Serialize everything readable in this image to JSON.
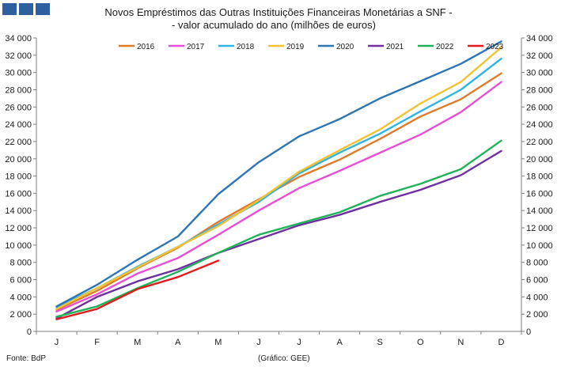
{
  "logo": {
    "squares": 3,
    "color": "#2e5f9e"
  },
  "footer": {
    "source": "Fonte: BdP",
    "credit": "(Gráfico: GEE)"
  },
  "chart_data": {
    "type": "line",
    "title": "Novos Empréstimos das Outras Instituições Financeiras Monetárias a SNF -",
    "subtitle": "- valor acumulado do ano (milhões de euros)",
    "categories": [
      "J",
      "F",
      "M",
      "A",
      "M",
      "J",
      "J",
      "A",
      "S",
      "O",
      "N",
      "D"
    ],
    "ylim": [
      0,
      34000
    ],
    "yticks": [
      0,
      2000,
      4000,
      6000,
      8000,
      10000,
      12000,
      14000,
      16000,
      18000,
      20000,
      22000,
      24000,
      26000,
      28000,
      30000,
      32000,
      34000
    ],
    "ytick_labels": [
      "0",
      "2 000",
      "4 000",
      "6 000",
      "8 000",
      "10 000",
      "12 000",
      "14 000",
      "16 000",
      "18 000",
      "20 000",
      "22 000",
      "24 000",
      "26 000",
      "28 000",
      "30 000",
      "32 000",
      "34 000"
    ],
    "legend_position": "top",
    "series": [
      {
        "name": "2016",
        "color": "#e07b2a",
        "values": [
          2500,
          4700,
          7300,
          9700,
          12700,
          15300,
          17900,
          19900,
          22300,
          24900,
          26900,
          29900
        ]
      },
      {
        "name": "2017",
        "color": "#e84fd3",
        "values": [
          2300,
          4300,
          6700,
          8500,
          11200,
          14000,
          16600,
          18600,
          20700,
          22800,
          25400,
          28900
        ]
      },
      {
        "name": "2018",
        "color": "#2fb4e6",
        "values": [
          2800,
          5000,
          7500,
          9800,
          12400,
          15000,
          18300,
          20700,
          22900,
          25500,
          28000,
          31600
        ]
      },
      {
        "name": "2019",
        "color": "#f1c232",
        "values": [
          2600,
          5000,
          7400,
          9800,
          12200,
          15200,
          18500,
          21000,
          23400,
          26400,
          28900,
          32900
        ]
      },
      {
        "name": "2020",
        "color": "#2e75b6",
        "values": [
          2900,
          5400,
          8300,
          11000,
          15900,
          19600,
          22600,
          24600,
          27000,
          29000,
          31000,
          33600
        ]
      },
      {
        "name": "2021",
        "color": "#7030a0",
        "values": [
          1500,
          4000,
          5800,
          7200,
          9100,
          10700,
          12300,
          13500,
          15000,
          16400,
          18100,
          20900
        ]
      },
      {
        "name": "2022",
        "color": "#1fb35a",
        "values": [
          1700,
          2900,
          5000,
          6900,
          9100,
          11200,
          12500,
          13800,
          15700,
          17100,
          18800,
          22100
        ]
      },
      {
        "name": "2023",
        "color": "#e31a1c",
        "values": [
          1400,
          2600,
          4900,
          6300,
          8200,
          null,
          null,
          null,
          null,
          null,
          null,
          null
        ]
      }
    ]
  }
}
